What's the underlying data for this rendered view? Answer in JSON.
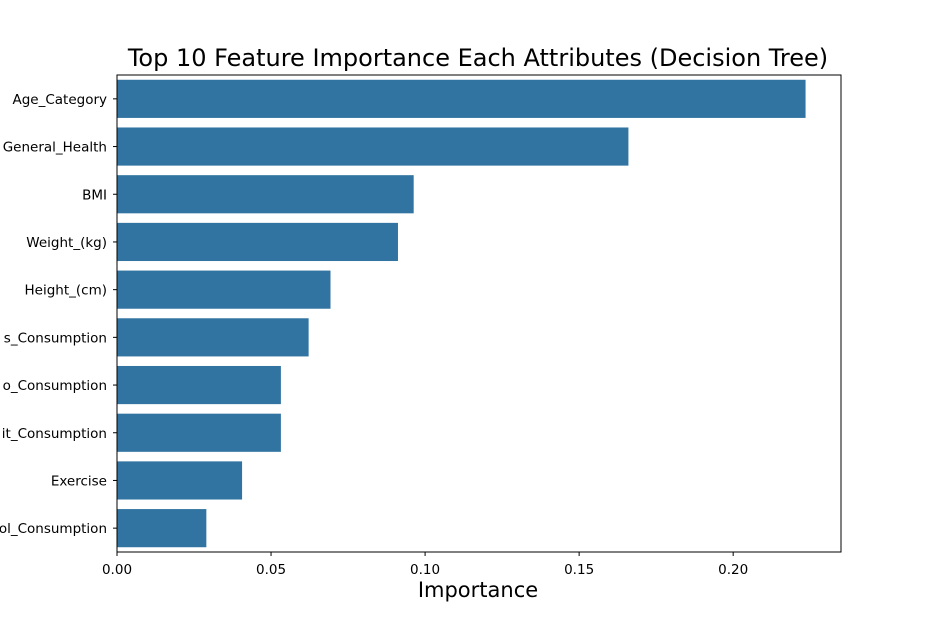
{
  "chart_data": {
    "type": "bar",
    "orientation": "horizontal",
    "title": "Top 10 Feature Importance Each Attributes (Decision Tree)",
    "xlabel": "Importance",
    "ylabel": "",
    "categories": [
      "Age_Category",
      "General_Health",
      "BMI",
      "Weight_(kg)",
      "Height_(cm)",
      "...s_Consumption",
      "...o_Consumption",
      "...it_Consumption",
      "Exercise",
      "...ol_Consumption"
    ],
    "category_labels_visible": [
      "Age_Category",
      "General_Health",
      "BMI",
      "Weight_(kg)",
      "Height_(cm)",
      "s_Consumption",
      "o_Consumption",
      "it_Consumption",
      "Exercise",
      "ol_Consumption"
    ],
    "values": [
      0.2235,
      0.166,
      0.0963,
      0.0912,
      0.0693,
      0.0622,
      0.0532,
      0.0532,
      0.0406,
      0.029
    ],
    "xlim": [
      0.0,
      0.235
    ],
    "xticks": [
      0.0,
      0.05,
      0.1,
      0.15,
      0.2
    ],
    "xtick_labels": [
      "0.00",
      "0.05",
      "0.10",
      "0.15",
      "0.20"
    ],
    "bar_color": "#3274a1",
    "grid": false,
    "legend": "none"
  }
}
